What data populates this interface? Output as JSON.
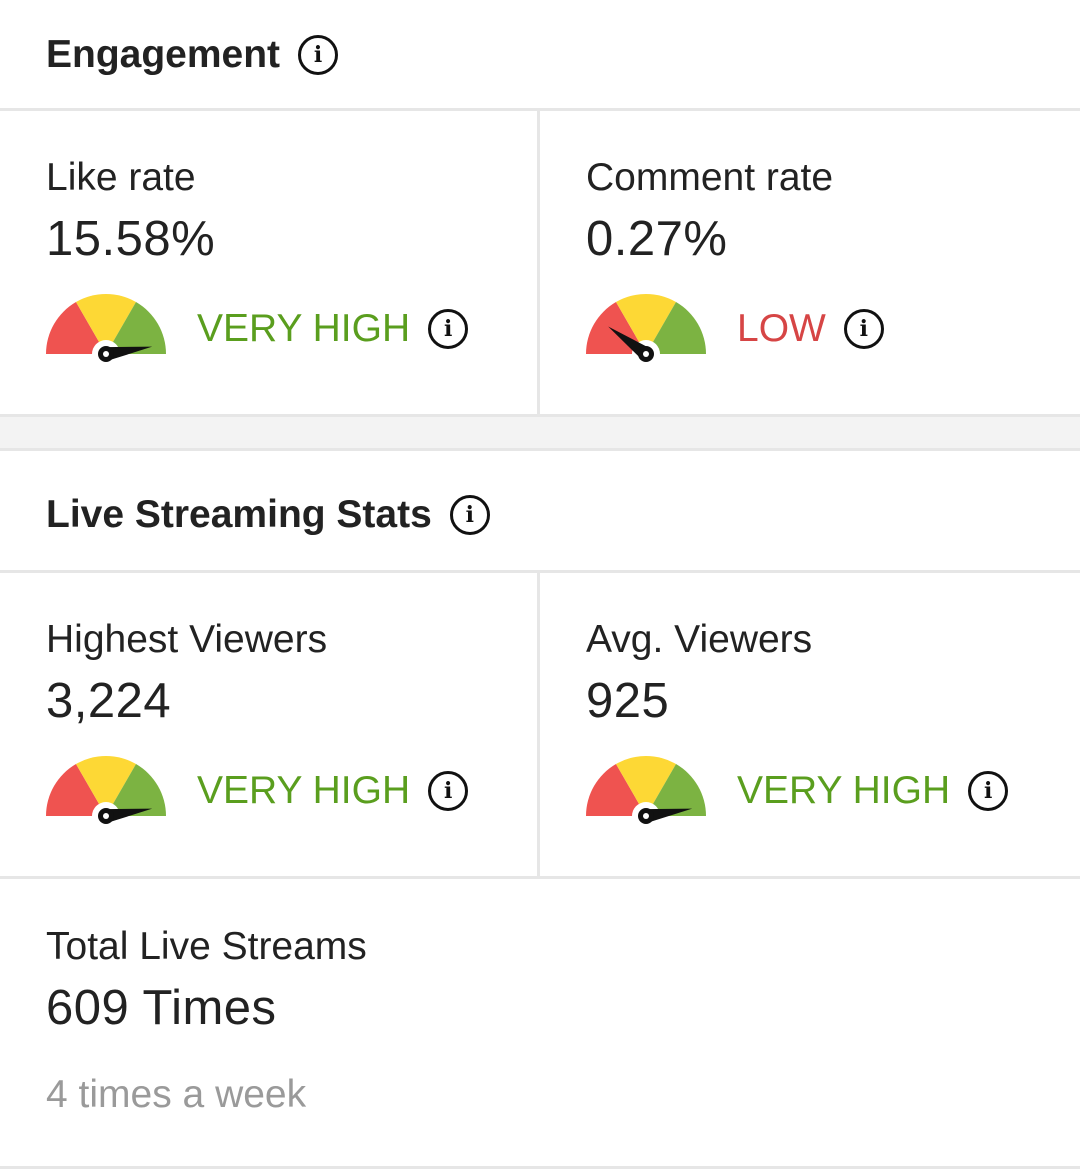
{
  "engagement": {
    "title": "Engagement",
    "like_rate": {
      "label": "Like rate",
      "value": "15.58%",
      "rating": "VERY HIGH",
      "rating_color": "#5a9e1e",
      "gauge_level": 0.95
    },
    "comment_rate": {
      "label": "Comment rate",
      "value": "0.27%",
      "rating": "LOW",
      "rating_color": "#d64545",
      "gauge_level": 0.2
    }
  },
  "live": {
    "title": "Live Streaming Stats",
    "highest_viewers": {
      "label": "Highest Viewers",
      "value": "3,224",
      "rating": "VERY HIGH",
      "rating_color": "#5a9e1e",
      "gauge_level": 0.95
    },
    "avg_viewers": {
      "label": "Avg. Viewers",
      "value": "925",
      "rating": "VERY HIGH",
      "rating_color": "#5a9e1e",
      "gauge_level": 0.95
    },
    "total_streams": {
      "label": "Total Live Streams",
      "value": "609 Times",
      "sub": "4 times a week"
    }
  },
  "colors": {
    "gauge_red": "#ef5350",
    "gauge_yellow": "#fdd835",
    "gauge_green": "#7cb342",
    "divider": "#e6e6e6"
  },
  "icons": {
    "info": "info-icon",
    "gauge": "gauge-icon"
  }
}
